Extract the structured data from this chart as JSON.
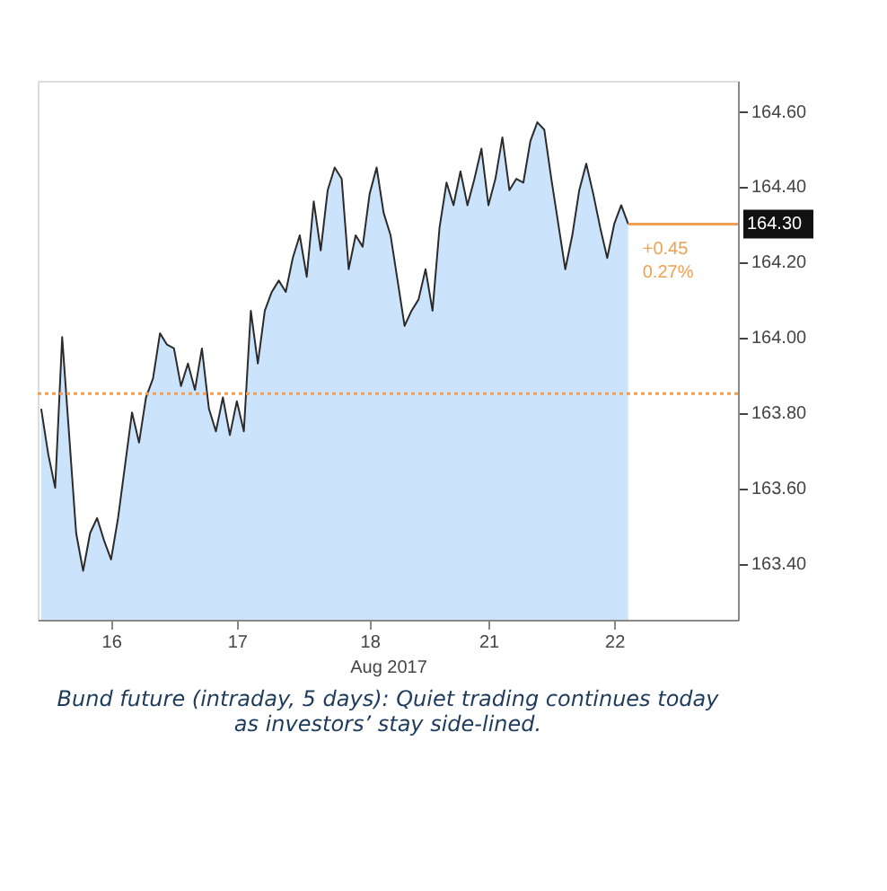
{
  "chart_data": {
    "type": "area",
    "xlabel": "Aug 2017",
    "categories": [
      null,
      null,
      null,
      null,
      null,
      null,
      null,
      null,
      null,
      null,
      "16",
      null,
      null,
      null,
      null,
      null,
      null,
      null,
      null,
      null,
      null,
      null,
      null,
      null,
      null,
      null,
      null,
      null,
      "17",
      null,
      null,
      null,
      null,
      null,
      null,
      null,
      null,
      null,
      null,
      null,
      null,
      null,
      null,
      null,
      null,
      null,
      null,
      "18",
      null,
      null,
      null,
      null,
      null,
      null,
      null,
      null,
      null,
      null,
      null,
      null,
      null,
      null,
      null,
      null,
      "21",
      null,
      null,
      null,
      null,
      null,
      null,
      null,
      null,
      null,
      null,
      null,
      null,
      null,
      null,
      null,
      null,
      null,
      "22",
      null,
      null
    ],
    "series": [
      {
        "color": "#cce4fb",
        "values": [
          163.81,
          163.69,
          163.6,
          164.0,
          163.74,
          163.48,
          163.38,
          163.48,
          163.52,
          163.46,
          163.41,
          163.52,
          163.66,
          163.8,
          163.72,
          163.84,
          163.89,
          164.01,
          163.98,
          163.97,
          163.87,
          163.93,
          163.86,
          163.97,
          163.81,
          163.75,
          163.84,
          163.74,
          163.83,
          163.75,
          164.07,
          163.93,
          164.07,
          164.12,
          164.15,
          164.12,
          164.21,
          164.27,
          164.16,
          164.36,
          164.23,
          164.39,
          164.45,
          164.42,
          164.18,
          164.27,
          164.24,
          164.38,
          164.45,
          164.33,
          164.27,
          164.15,
          164.03,
          164.07,
          164.1,
          164.18,
          164.07,
          164.29,
          164.41,
          164.35,
          164.44,
          164.35,
          164.42,
          164.5,
          164.35,
          164.42,
          164.53,
          164.39,
          164.42,
          164.41,
          164.52,
          164.57,
          164.55,
          164.42,
          164.3,
          164.18,
          164.27,
          164.39,
          164.46,
          164.38,
          164.29,
          164.21,
          164.3,
          164.35,
          164.3
        ]
      }
    ],
    "ylim": [
      163.25,
      164.68
    ],
    "yticks": [
      {
        "value": 163.4,
        "label": "163.40"
      },
      {
        "value": 163.6,
        "label": "163.60"
      },
      {
        "value": 163.8,
        "label": "163.80"
      },
      {
        "value": 164.0,
        "label": "164.00"
      },
      {
        "value": 164.2,
        "label": "164.20"
      },
      {
        "value": 164.4,
        "label": "164.40"
      },
      {
        "value": 164.6,
        "label": "164.60"
      }
    ],
    "ref_lines": [
      {
        "axis": "y",
        "value": 163.85,
        "color": "#f0a050",
        "line_style": "dotted"
      },
      {
        "axis": "y",
        "value": 164.3,
        "label": "164.30",
        "color": "#f0a050",
        "line_style": "solid"
      }
    ],
    "annotations": [
      "+0.45",
      "0.27%",
      "Bund future (intraday, 5 days): Quiet trading continues today as investors’ stay side-lined."
    ],
    "grid": false
  }
}
